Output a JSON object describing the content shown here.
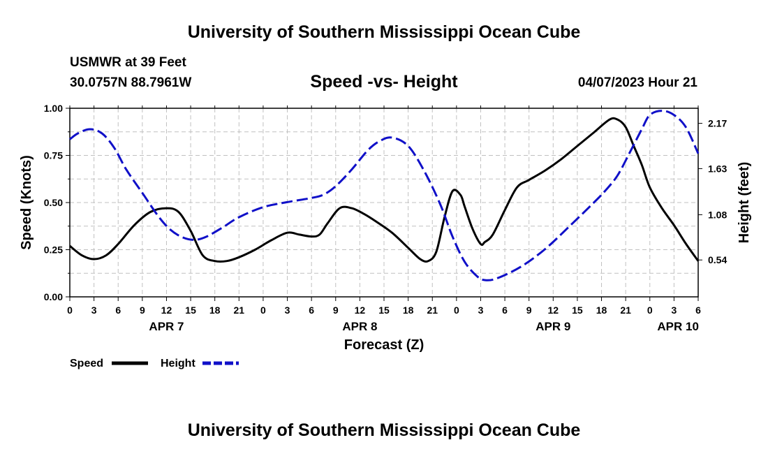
{
  "header": {
    "title": "University of Southern Mississippi Ocean Cube",
    "station": "USMWR at 39 Feet",
    "location": "30.0757N  88.7961W",
    "chart_title": "Speed -vs- Height",
    "date": "04/07/2023 Hour 21"
  },
  "footer": {
    "title": "University of Southern Mississippi Ocean Cube"
  },
  "legend": {
    "speed_label": "Speed",
    "height_label": "Height"
  },
  "colors": {
    "speed": "#000000",
    "height": "#1010c8"
  },
  "chart_data": {
    "type": "line",
    "title": "Speed -vs- Height",
    "xlabel": "Forecast (Z)",
    "ylabel": "Speed (Knots)",
    "y2label": "Height (feet)",
    "x_unit": "hours since APR 7 00Z",
    "xlim": [
      0,
      78
    ],
    "ylim": [
      0,
      1
    ],
    "y2lim": [
      0.1,
      2.35
    ],
    "x_ticks": [
      0,
      3,
      6,
      9,
      12,
      15,
      18,
      21,
      24,
      27,
      30,
      33,
      36,
      39,
      42,
      45,
      48,
      51,
      54,
      57,
      60,
      63,
      66,
      69,
      72,
      75,
      78
    ],
    "x_tick_labels": [
      "0",
      "3",
      "6",
      "9",
      "12",
      "15",
      "18",
      "21",
      "0",
      "3",
      "6",
      "9",
      "12",
      "15",
      "18",
      "21",
      "0",
      "3",
      "6",
      "9",
      "12",
      "15",
      "18",
      "21",
      "0",
      "3",
      "6"
    ],
    "date_labels": [
      {
        "text": "APR 7",
        "x": 12
      },
      {
        "text": "APR 8",
        "x": 36
      },
      {
        "text": "APR 9",
        "x": 60
      },
      {
        "text": "APR 10",
        "x": 75.5
      }
    ],
    "y_ticks": [
      0.0,
      0.25,
      0.5,
      0.75,
      1.0
    ],
    "y_tick_labels": [
      "0.00",
      "0.25",
      "0.50",
      "0.75",
      "1.00"
    ],
    "y2_ticks": [
      0.54,
      1.08,
      1.63,
      2.17
    ],
    "y2_tick_labels": [
      "0.54",
      "1.08",
      "1.63",
      "2.17"
    ],
    "series": [
      {
        "name": "Speed",
        "axis": "left",
        "style": "solid",
        "x": [
          0,
          1.5,
          3,
          4.5,
          6,
          8,
          10,
          12,
          13.5,
          15,
          16.5,
          18,
          19.5,
          21,
          23,
          25,
          27,
          28.5,
          30,
          31,
          32,
          33.5,
          35,
          36.5,
          38,
          40,
          42,
          43.5,
          44.5,
          45.5,
          46.5,
          47.5,
          48.5,
          49,
          50,
          51,
          51.5,
          52.5,
          54,
          55.5,
          57,
          59,
          61,
          63,
          65,
          67,
          68,
          69,
          70,
          71,
          72,
          73.5,
          75,
          76.5,
          78
        ],
        "values": [
          0.27,
          0.22,
          0.2,
          0.22,
          0.28,
          0.38,
          0.45,
          0.47,
          0.45,
          0.35,
          0.22,
          0.19,
          0.19,
          0.21,
          0.25,
          0.3,
          0.34,
          0.33,
          0.32,
          0.33,
          0.39,
          0.47,
          0.47,
          0.44,
          0.4,
          0.34,
          0.26,
          0.2,
          0.19,
          0.24,
          0.42,
          0.56,
          0.54,
          0.48,
          0.36,
          0.28,
          0.29,
          0.33,
          0.46,
          0.58,
          0.62,
          0.67,
          0.73,
          0.8,
          0.87,
          0.94,
          0.94,
          0.9,
          0.8,
          0.7,
          0.58,
          0.47,
          0.38,
          0.28,
          0.19
        ]
      },
      {
        "name": "Height",
        "axis": "right",
        "style": "dashed",
        "x": [
          0,
          1,
          2.5,
          4,
          5.5,
          7,
          9,
          11,
          12.5,
          14,
          15.5,
          17,
          19,
          21,
          24,
          27,
          30,
          31.5,
          33,
          35,
          37,
          38.5,
          40,
          42,
          44,
          46,
          47.5,
          49,
          50.5,
          51.5,
          53,
          56,
          59,
          62,
          65,
          66.5,
          68,
          69.5,
          71,
          72,
          73.5,
          75,
          76.5,
          78
        ],
        "values": [
          1.98,
          2.05,
          2.1,
          2.05,
          1.88,
          1.62,
          1.34,
          1.06,
          0.9,
          0.81,
          0.78,
          0.82,
          0.93,
          1.05,
          1.17,
          1.23,
          1.28,
          1.32,
          1.42,
          1.62,
          1.85,
          1.96,
          2.0,
          1.9,
          1.6,
          1.2,
          0.82,
          0.52,
          0.35,
          0.3,
          0.32,
          0.46,
          0.67,
          0.94,
          1.22,
          1.37,
          1.55,
          1.82,
          2.1,
          2.27,
          2.32,
          2.27,
          2.12,
          1.81
        ]
      }
    ]
  }
}
